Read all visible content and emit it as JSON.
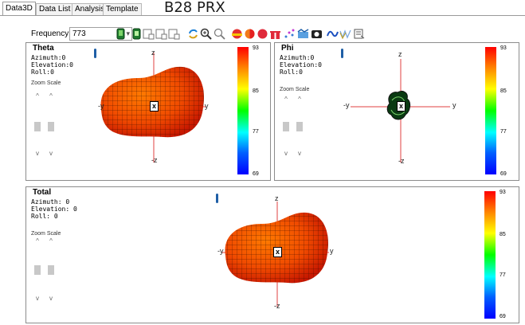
{
  "tabs": [
    {
      "label": "Data3D",
      "active": true
    },
    {
      "label": "Data List",
      "active": false
    },
    {
      "label": "Analysis",
      "active": false
    },
    {
      "label": "Template",
      "active": false
    }
  ],
  "window_title": "B28 PRX",
  "toolbar": {
    "frequency_label": "Frequency:",
    "frequency_value": "773",
    "icons": [
      "phone-green-icon",
      "phone-green-2-icon",
      "layout-1-icon",
      "layout-2-icon",
      "layout-3-icon",
      "rotate-icon",
      "zoom-in-icon",
      "zoom-out-icon",
      "sphere-half-icon",
      "sphere-color-icon",
      "sphere-red-icon",
      "gift-icon",
      "scatter-icon",
      "surface-icon",
      "camera-icon",
      "wave-icon",
      "multi-wave-icon",
      "export-icon"
    ]
  },
  "panels": {
    "theta": {
      "title": "Theta",
      "azimuth": "Azimuth:0",
      "elevation": "Elevation:0",
      "roll": "Roll:0",
      "zoom_label": "Zoom Scale",
      "axes": {
        "z": "z",
        "neg_z": "-z",
        "y": "y",
        "neg_y": "-y",
        "x": "x"
      },
      "colorbar": {
        "max": "93",
        "t1": "85",
        "t2": "77",
        "min": "69"
      }
    },
    "phi": {
      "title": "Phi",
      "azimuth": "Azimuth:0",
      "elevation": "Elevation:0",
      "roll": "Roll:0",
      "zoom_label": "Zoom Scale",
      "axes": {
        "z": "z",
        "neg_z": "-z",
        "y": "y",
        "neg_y": "-y",
        "x": "x"
      },
      "colorbar": {
        "max": "93",
        "t1": "85",
        "t2": "77",
        "min": "69"
      }
    },
    "total": {
      "title": "Total",
      "azimuth": "Azimuth: 0",
      "elevation": "Elevation: 0",
      "roll": "Roll: 0",
      "zoom_label": "Zoom Scale",
      "axes": {
        "z": "z",
        "neg_z": "-z",
        "y": "y",
        "neg_y": "-y",
        "x": "x"
      },
      "colorbar": {
        "max": "93",
        "t1": "85",
        "t2": "77",
        "min": "69"
      }
    }
  },
  "colors": {
    "accent_blue": "#1f5fa6",
    "pattern_red": "#e03000",
    "pattern_orange": "#ff8a00",
    "axis_red": "#e04040"
  }
}
